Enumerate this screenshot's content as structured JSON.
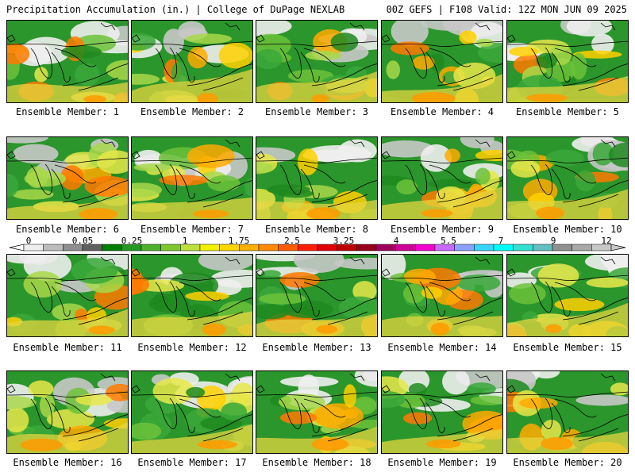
{
  "header": {
    "title": "Precipitation Accumulation (in.) | College of DuPage NEXLAB",
    "run_info": "00Z GEFS | F108 Valid: 12Z MON JUN 09 2025"
  },
  "colors": {
    "background": "#ffffff",
    "map_outline": "#000000"
  },
  "legend": {
    "labels": [
      "0",
      "0.05",
      "0.25",
      "1",
      "1.75",
      "2.5",
      "3.25",
      "4",
      "5.5",
      "7",
      "9",
      "12"
    ],
    "bins": [
      "#eeeeee",
      "#bdbdbd",
      "#8f8f8f",
      "#606060",
      "#007e00",
      "#239823",
      "#4cb02a",
      "#7ec82e",
      "#bde03a",
      "#f2f200",
      "#ffd600",
      "#ffaf00",
      "#ff8a00",
      "#ff5c00",
      "#ff1e00",
      "#e30000",
      "#bd0000",
      "#960018",
      "#a0005e",
      "#cf0096",
      "#f200d0",
      "#c968ff",
      "#8aa0ff",
      "#36d5ff",
      "#00ffff",
      "#36e0d0",
      "#62c0c0",
      "#909090",
      "#a8a8a8",
      "#c8c8c8"
    ]
  },
  "members": [
    {
      "label": "Ensemble Member: 1"
    },
    {
      "label": "Ensemble Member: 2"
    },
    {
      "label": "Ensemble Member: 3"
    },
    {
      "label": "Ensemble Member: 4"
    },
    {
      "label": "Ensemble Member: 5"
    },
    {
      "label": "Ensemble Member: 6"
    },
    {
      "label": "Ensemble Member: 7"
    },
    {
      "label": "Ensemble Member: 8"
    },
    {
      "label": "Ensemble Member: 9"
    },
    {
      "label": "Ensemble Member: 10"
    },
    {
      "label": "Ensemble Member: 11"
    },
    {
      "label": "Ensemble Member: 12"
    },
    {
      "label": "Ensemble Member: 13"
    },
    {
      "label": "Ensemble Member: 14"
    },
    {
      "label": "Ensemble Member: 15"
    },
    {
      "label": "Ensemble Member: 16"
    },
    {
      "label": "Ensemble Member: 17"
    },
    {
      "label": "Ensemble Member: 18"
    },
    {
      "label": "Ensemble Member: 19"
    },
    {
      "label": "Ensemble Member: 20"
    }
  ]
}
